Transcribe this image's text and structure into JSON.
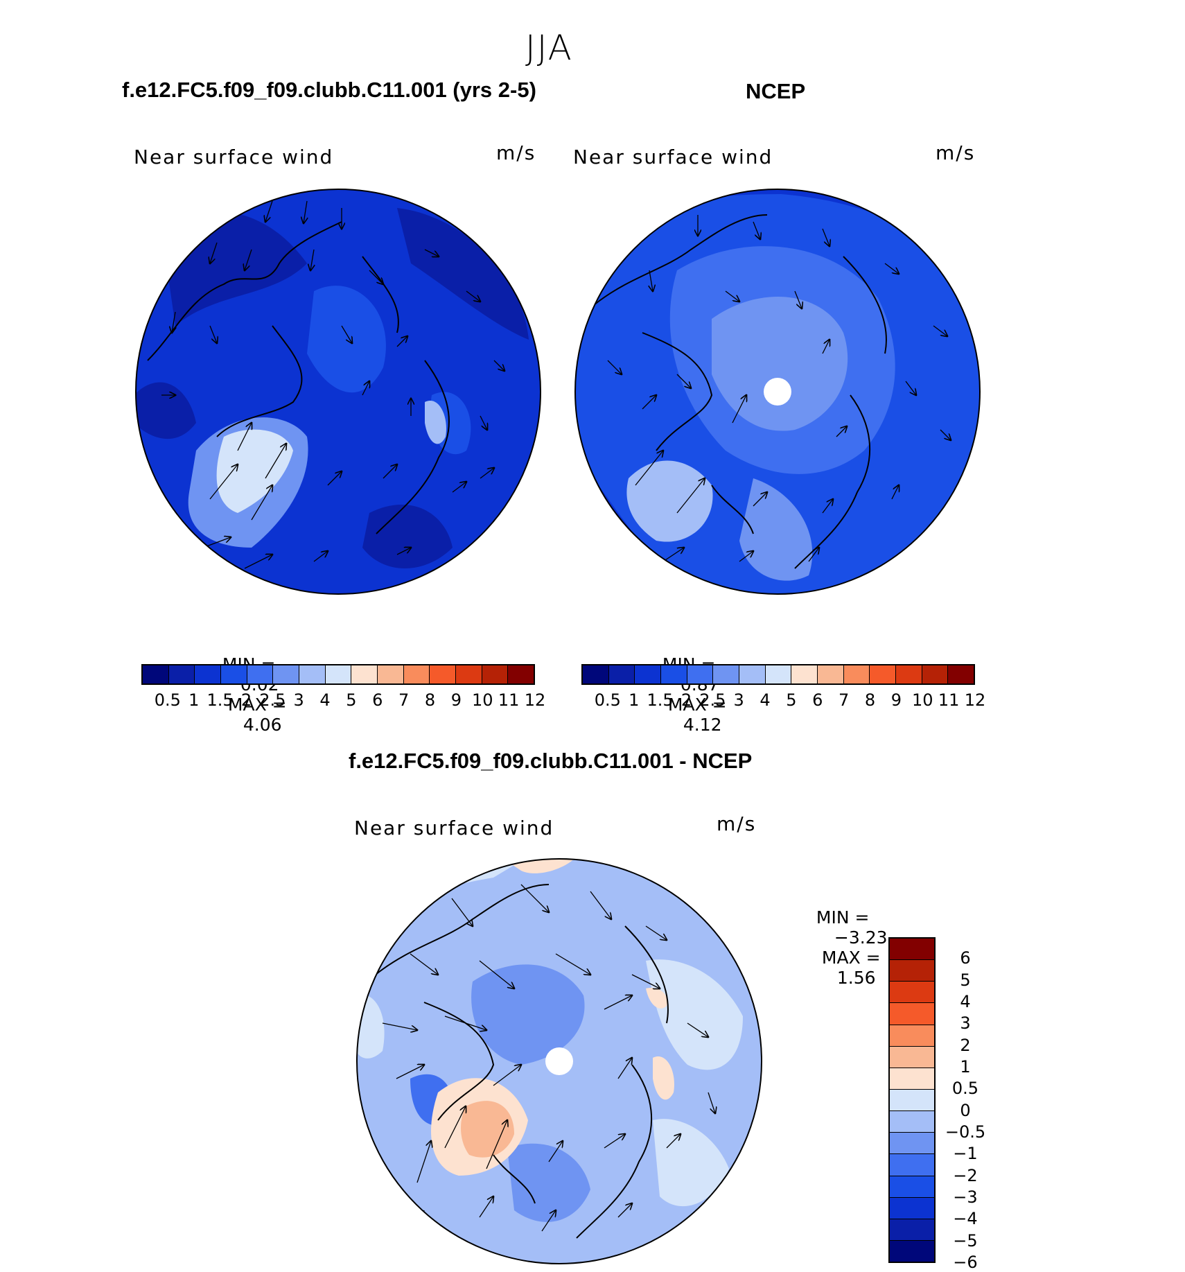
{
  "figure": {
    "season": "JJA",
    "panel_left_title": "f.e12.FC5.f09_f09.clubb.C11.001 (yrs 2-5)",
    "panel_right_title": "NCEP",
    "panel_diff_title": "f.e12.FC5.f09_f09.clubb.C11.001 - NCEP"
  },
  "maps": [
    {
      "id": "model",
      "variable": "Near surface wind",
      "units": "m/s",
      "min_label": "MIN =",
      "min_value": "0.02",
      "max_label": "MAX =",
      "max_value": "4.06",
      "colors": [
        "#00077a",
        "#0a1fa8",
        "#0c33d1",
        "#1a4fe6",
        "#3f6ff0",
        "#6f94f2",
        "#a4bef7",
        "#d4e4fa",
        "#fde2d0",
        "#f9b894",
        "#f98c5c",
        "#f55a2a",
        "#dc3a12",
        "#b52206",
        "#820000"
      ],
      "tick_labels": [
        "0.5",
        "1",
        "1.5",
        "2",
        "2.5",
        "3",
        "4",
        "5",
        "6",
        "7",
        "8",
        "9",
        "10",
        "11",
        "12"
      ]
    },
    {
      "id": "ncep",
      "variable": "Near surface wind",
      "units": "m/s",
      "min_label": "MIN =",
      "min_value": "0.87",
      "max_label": "MAX =",
      "max_value": "4.12",
      "colors": [
        "#00077a",
        "#0a1fa8",
        "#0c33d1",
        "#1a4fe6",
        "#3f6ff0",
        "#6f94f2",
        "#a4bef7",
        "#d4e4fa",
        "#fde2d0",
        "#f9b894",
        "#f98c5c",
        "#f55a2a",
        "#dc3a12",
        "#b52206",
        "#820000"
      ],
      "tick_labels": [
        "0.5",
        "1",
        "1.5",
        "2",
        "2.5",
        "3",
        "4",
        "5",
        "6",
        "7",
        "8",
        "9",
        "10",
        "11",
        "12"
      ]
    },
    {
      "id": "difference",
      "variable": "Near surface wind",
      "units": "m/s",
      "min_label": "MIN =",
      "min_value": "−3.23",
      "max_label": "MAX =",
      "max_value": "1.56",
      "colors_top_to_bottom": [
        "#820000",
        "#b52206",
        "#dc3a12",
        "#f55a2a",
        "#f98c5c",
        "#f9b894",
        "#fde2d0",
        "#d4e4fa",
        "#a4bef7",
        "#6f94f2",
        "#3f6ff0",
        "#1a4fe6",
        "#0c33d1",
        "#0a1fa8",
        "#00077a"
      ],
      "tick_labels_top_to_bottom": [
        "6",
        "5",
        "4",
        "3",
        "2",
        "1",
        "0.5",
        "0",
        "−0.5",
        "−1",
        "−2",
        "−3",
        "−4",
        "−5",
        "−6"
      ]
    }
  ]
}
